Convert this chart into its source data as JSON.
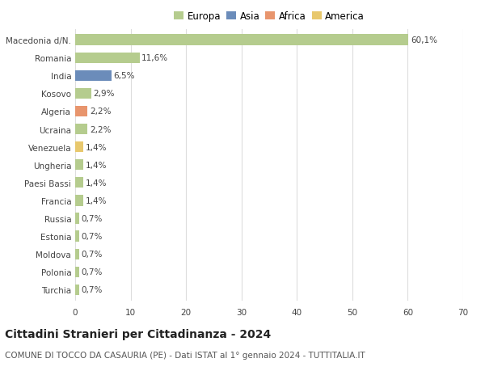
{
  "categories": [
    "Macedonia d/N.",
    "Romania",
    "India",
    "Kosovo",
    "Algeria",
    "Ucraina",
    "Venezuela",
    "Ungheria",
    "Paesi Bassi",
    "Francia",
    "Russia",
    "Estonia",
    "Moldova",
    "Polonia",
    "Turchia"
  ],
  "values": [
    60.1,
    11.6,
    6.5,
    2.9,
    2.2,
    2.2,
    1.4,
    1.4,
    1.4,
    1.4,
    0.7,
    0.7,
    0.7,
    0.7,
    0.7
  ],
  "labels": [
    "60,1%",
    "11,6%",
    "6,5%",
    "2,9%",
    "2,2%",
    "2,2%",
    "1,4%",
    "1,4%",
    "1,4%",
    "1,4%",
    "0,7%",
    "0,7%",
    "0,7%",
    "0,7%",
    "0,7%"
  ],
  "colors": [
    "#b5cc8e",
    "#b5cc8e",
    "#6b8cba",
    "#b5cc8e",
    "#e8956d",
    "#b5cc8e",
    "#e8c86d",
    "#b5cc8e",
    "#b5cc8e",
    "#b5cc8e",
    "#b5cc8e",
    "#b5cc8e",
    "#b5cc8e",
    "#b5cc8e",
    "#b5cc8e"
  ],
  "legend_labels": [
    "Europa",
    "Asia",
    "Africa",
    "America"
  ],
  "legend_colors": [
    "#b5cc8e",
    "#6b8cba",
    "#e8956d",
    "#e8c86d"
  ],
  "title": "Cittadini Stranieri per Cittadinanza - 2024",
  "subtitle": "COMUNE DI TOCCO DA CASAURIA (PE) - Dati ISTAT al 1° gennaio 2024 - TUTTITALIA.IT",
  "xlim": [
    0,
    70
  ],
  "xticks": [
    0,
    10,
    20,
    30,
    40,
    50,
    60,
    70
  ],
  "background_color": "#ffffff",
  "grid_color": "#dddddd",
  "bar_height": 0.6,
  "title_fontsize": 10,
  "subtitle_fontsize": 7.5,
  "label_fontsize": 7.5,
  "tick_fontsize": 7.5,
  "legend_fontsize": 8.5
}
